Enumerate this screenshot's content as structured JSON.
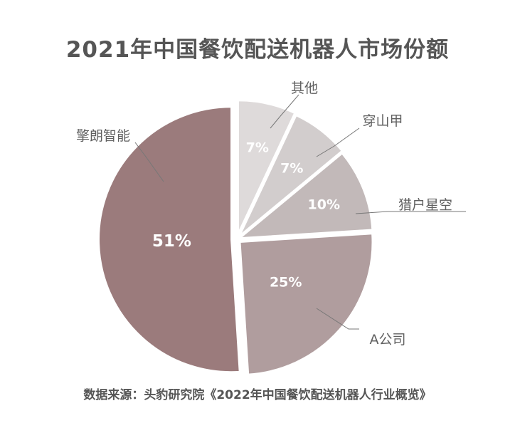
{
  "chart_data": {
    "type": "pie",
    "title": "2021年中国餐饮配送机器人市场份额",
    "source": "数据来源：头豹研究院《2022年中国餐饮配送机器人行业概览》",
    "slices": [
      {
        "label": "其他",
        "value": 7,
        "value_label": "7%",
        "color": "#dedada"
      },
      {
        "label": "穿山甲",
        "value": 7,
        "value_label": "7%",
        "color": "#d2cdcd"
      },
      {
        "label": "猎户星空",
        "value": 10,
        "value_label": "10%",
        "color": "#c2b9b9"
      },
      {
        "label": "A公司",
        "value": 25,
        "value_label": "25%",
        "color": "#b09d9e"
      },
      {
        "label": "擎朗智能",
        "value": 51,
        "value_label": "51%",
        "color": "#9b7b7c"
      }
    ]
  }
}
